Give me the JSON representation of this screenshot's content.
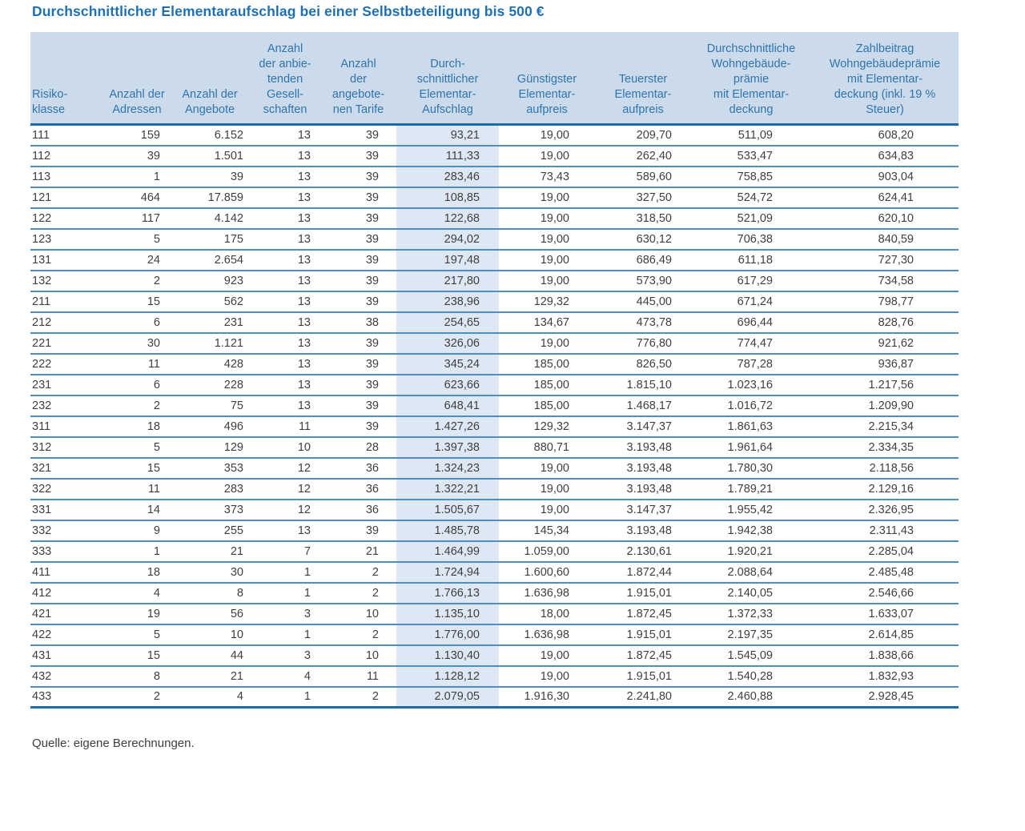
{
  "page": {
    "title": "Durchschnittlicher Elementaraufschlag bei einer Selbstbeteiligung bis 500 €",
    "source_note": "Quelle: eigene Berechnungen."
  },
  "colors": {
    "title_blue": "#1f70b3",
    "header_bg": "#cbdbeb",
    "header_text": "#2f74ae",
    "highlight_bg": "#dee8f4",
    "row_line": "#4d8fc0",
    "strong_line": "#1f6ba9",
    "body_text": "#3f3f3f"
  },
  "chart_data": {
    "type": "table",
    "title": "Durchschnittlicher Elementaraufschlag bei einer Selbstbeteiligung bis 500 €",
    "source": "Quelle: eigene Berechnungen.",
    "highlight_column_index": 5,
    "columns": [
      {
        "id": "risikoklasse",
        "label": "Risiko-\nklasse"
      },
      {
        "id": "anzahl-adressen",
        "label": "Anzahl der\nAdressen"
      },
      {
        "id": "anzahl-angebote",
        "label": "Anzahl der\nAngebote"
      },
      {
        "id": "anzahl-gesellschaften",
        "label": "Anzahl\nder anbie-\ntenden\nGesell-\nschaften"
      },
      {
        "id": "anzahl-tarife",
        "label": "Anzahl\nder\nangebote-\nnen Tarife"
      },
      {
        "id": "durchschnittlicher-elementar-aufschlag",
        "label": "Durch-\nschnittlicher\nElementar-\nAufschlag",
        "highlight": true
      },
      {
        "id": "guenstigster-elementaraufpreis",
        "label": "Günstigster\nElementar-\naufpreis"
      },
      {
        "id": "teuerster-elementaraufpreis",
        "label": "Teuerster\nElementar-\naufpreis"
      },
      {
        "id": "durchschnittliche-wohngebaeudepraemie",
        "label": "Durchschnittliche\nWohngebäude-\nprämie\nmit Elementar-\ndeckung"
      },
      {
        "id": "zahlbeitrag",
        "label": "Zahlbeitrag\nWohngebäudeprämie\nmit Elementar-\ndeckung (inkl. 19 %\nSteuer)"
      }
    ],
    "rows": [
      [
        "111",
        "159",
        "6.152",
        "13",
        "39",
        "93,21",
        "19,00",
        "209,70",
        "511,09",
        "608,20"
      ],
      [
        "112",
        "39",
        "1.501",
        "13",
        "39",
        "111,33",
        "19,00",
        "262,40",
        "533,47",
        "634,83"
      ],
      [
        "113",
        "1",
        "39",
        "13",
        "39",
        "283,46",
        "73,43",
        "589,60",
        "758,85",
        "903,04"
      ],
      [
        "121",
        "464",
        "17.859",
        "13",
        "39",
        "108,85",
        "19,00",
        "327,50",
        "524,72",
        "624,41"
      ],
      [
        "122",
        "117",
        "4.142",
        "13",
        "39",
        "122,68",
        "19,00",
        "318,50",
        "521,09",
        "620,10"
      ],
      [
        "123",
        "5",
        "175",
        "13",
        "39",
        "294,02",
        "19,00",
        "630,12",
        "706,38",
        "840,59"
      ],
      [
        "131",
        "24",
        "2.654",
        "13",
        "39",
        "197,48",
        "19,00",
        "686,49",
        "611,18",
        "727,30"
      ],
      [
        "132",
        "2",
        "923",
        "13",
        "39",
        "217,80",
        "19,00",
        "573,90",
        "617,29",
        "734,58"
      ],
      [
        "211",
        "15",
        "562",
        "13",
        "39",
        "238,96",
        "129,32",
        "445,00",
        "671,24",
        "798,77"
      ],
      [
        "212",
        "6",
        "231",
        "13",
        "38",
        "254,65",
        "134,67",
        "473,78",
        "696,44",
        "828,76"
      ],
      [
        "221",
        "30",
        "1.121",
        "13",
        "39",
        "326,06",
        "19,00",
        "776,80",
        "774,47",
        "921,62"
      ],
      [
        "222",
        "11",
        "428",
        "13",
        "39",
        "345,24",
        "185,00",
        "826,50",
        "787,28",
        "936,87"
      ],
      [
        "231",
        "6",
        "228",
        "13",
        "39",
        "623,66",
        "185,00",
        "1.815,10",
        "1.023,16",
        "1.217,56"
      ],
      [
        "232",
        "2",
        "75",
        "13",
        "39",
        "648,41",
        "185,00",
        "1.468,17",
        "1.016,72",
        "1.209,90"
      ],
      [
        "311",
        "18",
        "496",
        "11",
        "39",
        "1.427,26",
        "129,32",
        "3.147,37",
        "1.861,63",
        "2.215,34"
      ],
      [
        "312",
        "5",
        "129",
        "10",
        "28",
        "1.397,38",
        "880,71",
        "3.193,48",
        "1.961,64",
        "2.334,35"
      ],
      [
        "321",
        "15",
        "353",
        "12",
        "36",
        "1.324,23",
        "19,00",
        "3.193,48",
        "1.780,30",
        "2.118,56"
      ],
      [
        "322",
        "11",
        "283",
        "12",
        "36",
        "1.322,21",
        "19,00",
        "3.193,48",
        "1.789,21",
        "2.129,16"
      ],
      [
        "331",
        "14",
        "373",
        "12",
        "36",
        "1.505,67",
        "19,00",
        "3.147,37",
        "1.955,42",
        "2.326,95"
      ],
      [
        "332",
        "9",
        "255",
        "13",
        "39",
        "1.485,78",
        "145,34",
        "3.193,48",
        "1.942,38",
        "2.311,43"
      ],
      [
        "333",
        "1",
        "21",
        "7",
        "21",
        "1.464,99",
        "1.059,00",
        "2.130,61",
        "1.920,21",
        "2.285,04"
      ],
      [
        "411",
        "18",
        "30",
        "1",
        "2",
        "1.724,94",
        "1.600,60",
        "1.872,44",
        "2.088,64",
        "2.485,48"
      ],
      [
        "412",
        "4",
        "8",
        "1",
        "2",
        "1.766,13",
        "1.636,98",
        "1.915,01",
        "2.140,05",
        "2.546,66"
      ],
      [
        "421",
        "19",
        "56",
        "3",
        "10",
        "1.135,10",
        "18,00",
        "1.872,45",
        "1.372,33",
        "1.633,07"
      ],
      [
        "422",
        "5",
        "10",
        "1",
        "2",
        "1.776,00",
        "1.636,98",
        "1.915,01",
        "2.197,35",
        "2.614,85"
      ],
      [
        "431",
        "15",
        "44",
        "3",
        "10",
        "1.130,40",
        "19,00",
        "1.872,45",
        "1.545,09",
        "1.838,66"
      ],
      [
        "432",
        "8",
        "21",
        "4",
        "11",
        "1.128,12",
        "19,00",
        "1.915,01",
        "1.540,28",
        "1.832,93"
      ],
      [
        "433",
        "2",
        "4",
        "1",
        "2",
        "2.079,05",
        "1.916,30",
        "2.241,80",
        "2.460,88",
        "2.928,45"
      ]
    ]
  }
}
